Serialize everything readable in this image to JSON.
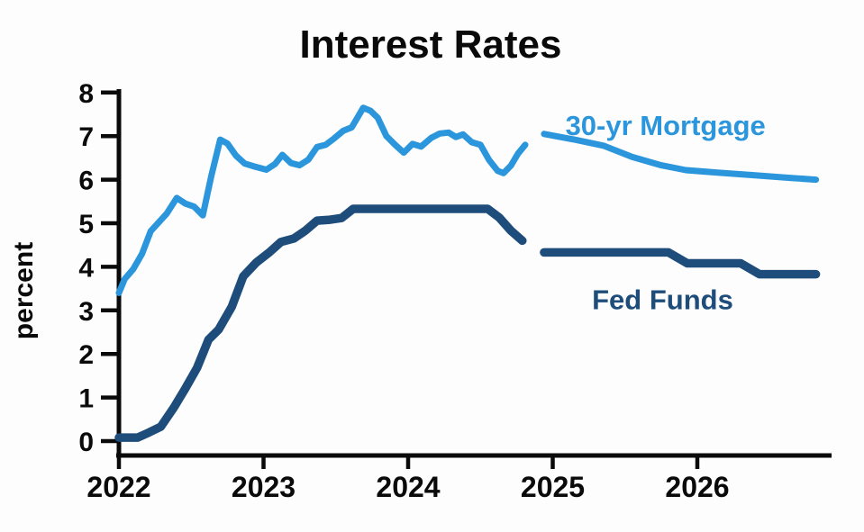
{
  "title": "Interest Rates",
  "chart_data": {
    "type": "line",
    "title": "Interest Rates",
    "xlabel": "",
    "ylabel": "percent",
    "ylim": [
      0,
      8
    ],
    "yticks": [
      0,
      1,
      2,
      3,
      4,
      5,
      6,
      7,
      8
    ],
    "xlim": [
      2022,
      2026.93
    ],
    "xticks": [
      2022,
      2023,
      2024,
      2025,
      2026
    ],
    "grid": false,
    "legend_position": "inline-annotations",
    "colors": {
      "mortgage": "#2b96db",
      "fed_funds": "#1e4d7b",
      "axis": "#0a0a0a",
      "title": "#0a0a0a"
    },
    "series": [
      {
        "name": "30-yr Mortgage (history)",
        "color": "mortgage",
        "width": 7,
        "points": [
          [
            2022.0,
            3.4
          ],
          [
            2022.04,
            3.72
          ],
          [
            2022.1,
            3.95
          ],
          [
            2022.16,
            4.3
          ],
          [
            2022.22,
            4.82
          ],
          [
            2022.27,
            5.0
          ],
          [
            2022.33,
            5.22
          ],
          [
            2022.4,
            5.58
          ],
          [
            2022.46,
            5.45
          ],
          [
            2022.52,
            5.38
          ],
          [
            2022.58,
            5.18
          ],
          [
            2022.64,
            6.1
          ],
          [
            2022.7,
            6.92
          ],
          [
            2022.75,
            6.83
          ],
          [
            2022.81,
            6.55
          ],
          [
            2022.87,
            6.37
          ],
          [
            2022.94,
            6.3
          ],
          [
            2023.02,
            6.23
          ],
          [
            2023.08,
            6.36
          ],
          [
            2023.13,
            6.57
          ],
          [
            2023.19,
            6.38
          ],
          [
            2023.25,
            6.33
          ],
          [
            2023.31,
            6.46
          ],
          [
            2023.37,
            6.75
          ],
          [
            2023.43,
            6.8
          ],
          [
            2023.49,
            6.95
          ],
          [
            2023.55,
            7.12
          ],
          [
            2023.61,
            7.2
          ],
          [
            2023.69,
            7.65
          ],
          [
            2023.74,
            7.58
          ],
          [
            2023.79,
            7.42
          ],
          [
            2023.85,
            7.0
          ],
          [
            2023.91,
            6.8
          ],
          [
            2023.97,
            6.62
          ],
          [
            2024.03,
            6.82
          ],
          [
            2024.09,
            6.76
          ],
          [
            2024.16,
            6.96
          ],
          [
            2024.22,
            7.06
          ],
          [
            2024.28,
            7.08
          ],
          [
            2024.33,
            6.98
          ],
          [
            2024.38,
            7.04
          ],
          [
            2024.44,
            6.86
          ],
          [
            2024.5,
            6.8
          ],
          [
            2024.56,
            6.45
          ],
          [
            2024.62,
            6.2
          ],
          [
            2024.66,
            6.15
          ],
          [
            2024.71,
            6.32
          ],
          [
            2024.76,
            6.6
          ],
          [
            2024.81,
            6.8
          ]
        ]
      },
      {
        "name": "30-yr Mortgage (forecast)",
        "color": "mortgage",
        "width": 7,
        "points": [
          [
            2024.94,
            7.05
          ],
          [
            2025.15,
            6.92
          ],
          [
            2025.35,
            6.78
          ],
          [
            2025.55,
            6.52
          ],
          [
            2025.75,
            6.33
          ],
          [
            2025.92,
            6.22
          ],
          [
            2026.15,
            6.16
          ],
          [
            2026.4,
            6.1
          ],
          [
            2026.65,
            6.04
          ],
          [
            2026.82,
            6.0
          ]
        ]
      },
      {
        "name": "Fed Funds (history)",
        "color": "fed_funds",
        "width": 9.5,
        "points": [
          [
            2022.0,
            0.08
          ],
          [
            2022.13,
            0.08
          ],
          [
            2022.21,
            0.2
          ],
          [
            2022.29,
            0.33
          ],
          [
            2022.38,
            0.77
          ],
          [
            2022.46,
            1.21
          ],
          [
            2022.54,
            1.68
          ],
          [
            2022.62,
            2.33
          ],
          [
            2022.69,
            2.56
          ],
          [
            2022.78,
            3.08
          ],
          [
            2022.86,
            3.78
          ],
          [
            2022.95,
            4.1
          ],
          [
            2023.04,
            4.33
          ],
          [
            2023.12,
            4.57
          ],
          [
            2023.21,
            4.65
          ],
          [
            2023.29,
            4.83
          ],
          [
            2023.37,
            5.06
          ],
          [
            2023.46,
            5.08
          ],
          [
            2023.54,
            5.12
          ],
          [
            2023.62,
            5.33
          ],
          [
            2024.0,
            5.33
          ],
          [
            2024.55,
            5.33
          ],
          [
            2024.63,
            5.13
          ],
          [
            2024.71,
            4.83
          ],
          [
            2024.79,
            4.6
          ]
        ]
      },
      {
        "name": "Fed Funds (forecast)",
        "color": "fed_funds",
        "width": 9.5,
        "points": [
          [
            2024.94,
            4.33
          ],
          [
            2025.8,
            4.33
          ],
          [
            2025.93,
            4.08
          ],
          [
            2026.3,
            4.08
          ],
          [
            2026.43,
            3.83
          ],
          [
            2026.82,
            3.83
          ]
        ]
      }
    ],
    "annotations": [
      {
        "text": "30-yr Mortgage",
        "x": 2025.78,
        "y": 7.25,
        "color": "mortgage"
      },
      {
        "text": "Fed Funds",
        "x": 2025.76,
        "y": 3.25,
        "color": "fed_funds"
      }
    ]
  }
}
